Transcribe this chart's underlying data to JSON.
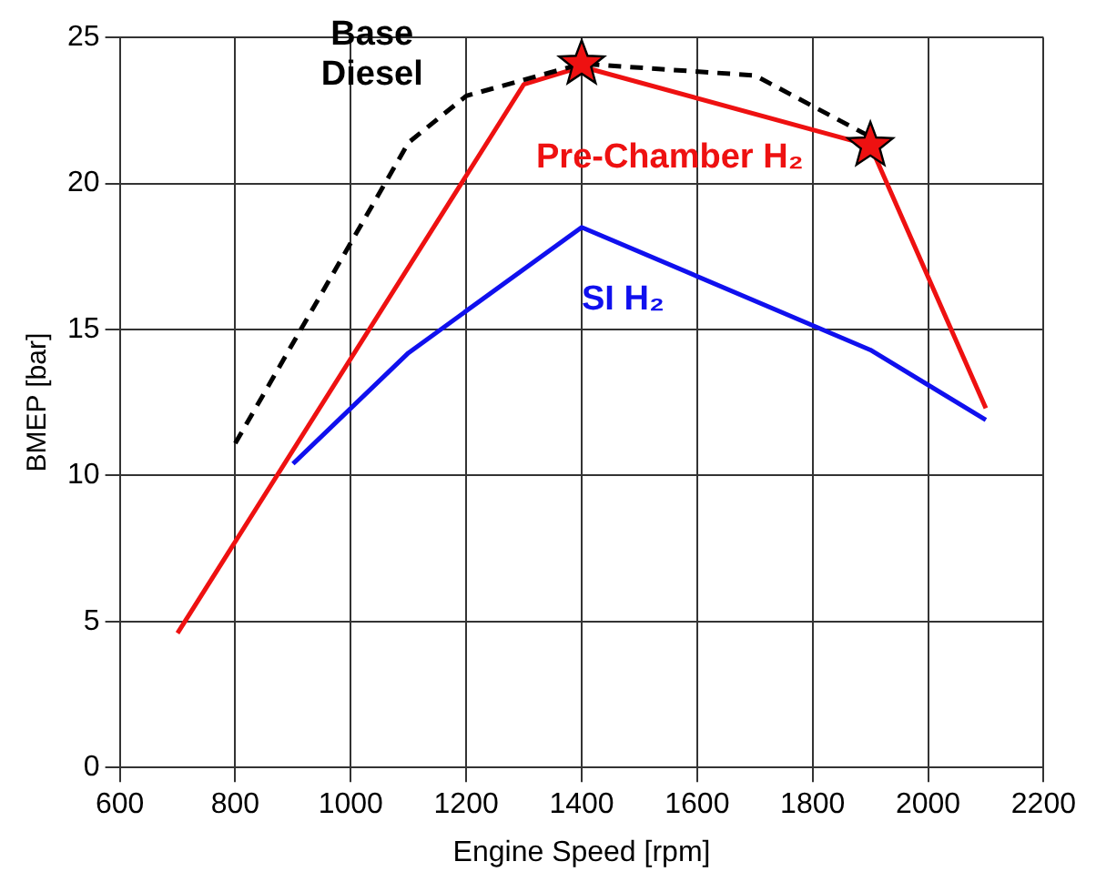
{
  "chart_data": {
    "type": "line",
    "xlabel": "Engine Speed [rpm]",
    "ylabel": "BMEP [bar]",
    "xlim": [
      600,
      2200
    ],
    "xticks": [
      600,
      800,
      1000,
      1200,
      1400,
      1600,
      1800,
      2000,
      2200
    ],
    "ylim": [
      0,
      25
    ],
    "yticks": [
      0,
      5,
      10,
      15,
      20,
      25
    ],
    "grid": true,
    "legend": false,
    "marker": "none",
    "series": [
      {
        "name": "Base\nDiesel",
        "color": "#000000",
        "line_style": "dashed",
        "x": [
          800,
          1100,
          1200,
          1400,
          1700,
          1900
        ],
        "values": [
          11.1,
          21.4,
          23.0,
          24.1,
          23.7,
          21.6
        ]
      },
      {
        "name": "Pre-Chamber H₂",
        "color": "#ee1111",
        "line_style": "solid",
        "x": [
          700,
          1300,
          1400,
          1900,
          2100
        ],
        "values": [
          4.6,
          23.4,
          24.0,
          21.3,
          12.3
        ]
      },
      {
        "name": "SI H₂",
        "color": "#1010ee",
        "line_style": "solid",
        "x": [
          900,
          1100,
          1400,
          1900,
          2100
        ],
        "values": [
          10.4,
          14.2,
          18.5,
          14.3,
          11.9
        ]
      },
      {
        "type": "scatter",
        "marker": "star",
        "color": "#ee1111",
        "x": [
          1400,
          1900
        ],
        "values": [
          24.1,
          21.3
        ]
      }
    ]
  }
}
